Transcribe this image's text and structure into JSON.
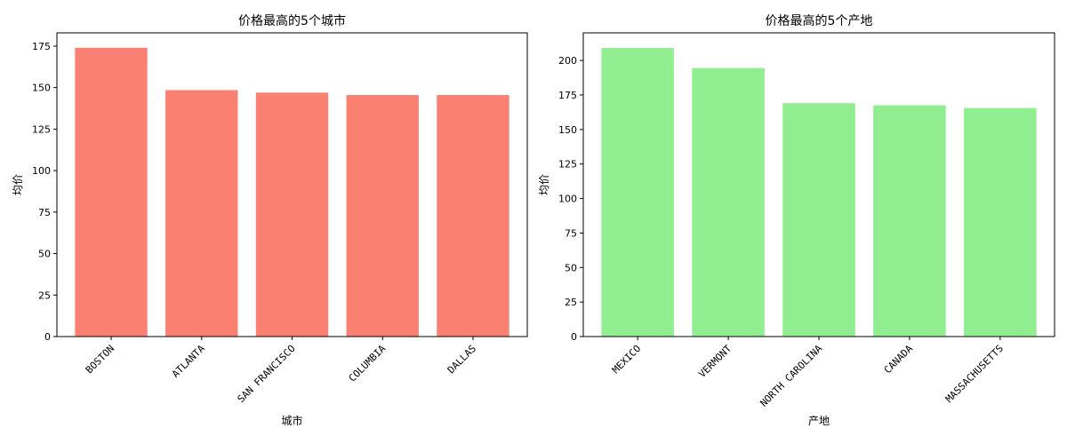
{
  "chart_data": [
    {
      "type": "bar",
      "title": "价格最高的5个城市",
      "xlabel": "城市",
      "ylabel": "均价",
      "categories": [
        "BOSTON",
        "ATLANTA",
        "SAN FRANCISCO",
        "COLUMBIA",
        "DALLAS"
      ],
      "values": [
        174,
        148.5,
        147,
        145.5,
        145.5
      ],
      "ylim": [
        0,
        183
      ],
      "yticks": [
        0,
        25,
        50,
        75,
        100,
        125,
        150,
        175
      ],
      "color": "#fa8072",
      "grid": false,
      "legend": "none"
    },
    {
      "type": "bar",
      "title": "价格最高的5个产地",
      "xlabel": "产地",
      "ylabel": "均价",
      "categories": [
        "MEXICO",
        "VERMONT",
        "NORTH CAROLINA",
        "CANADA",
        "MASSACHUSETTS"
      ],
      "values": [
        209,
        194.5,
        169,
        167.5,
        165.5
      ],
      "ylim": [
        0,
        220
      ],
      "yticks": [
        0,
        25,
        50,
        75,
        100,
        125,
        150,
        175,
        200
      ],
      "color": "#90ee90",
      "grid": false,
      "legend": "none"
    }
  ]
}
